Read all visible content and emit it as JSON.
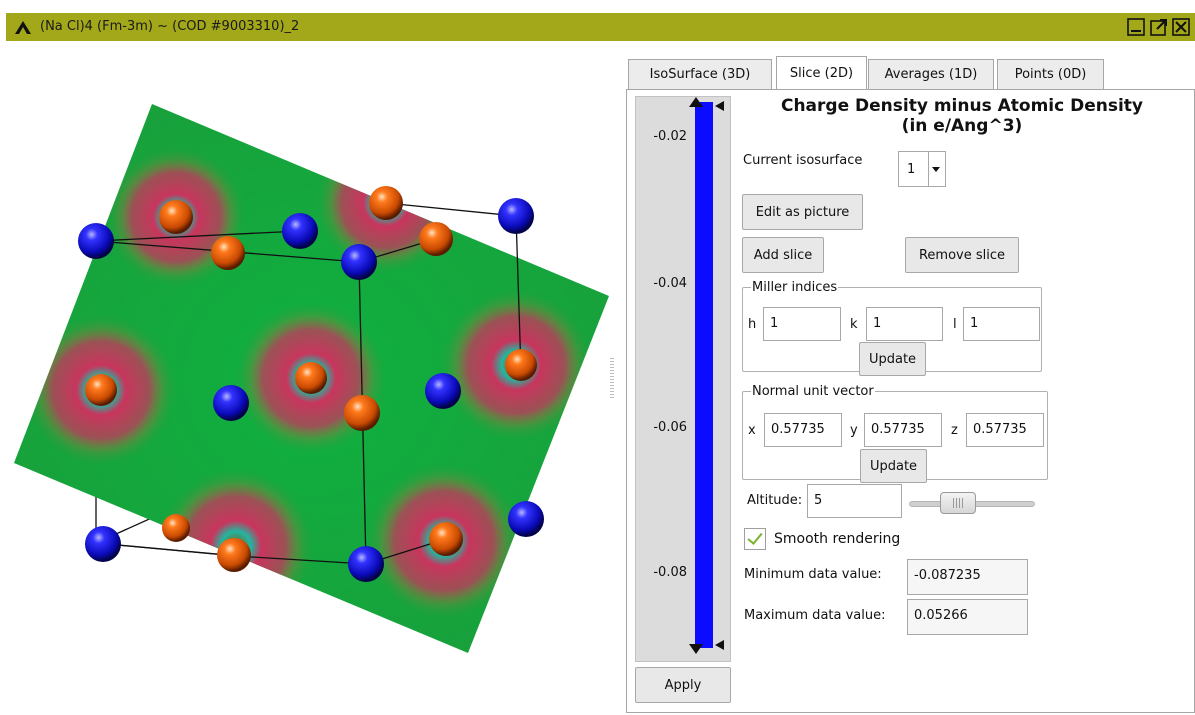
{
  "window": {
    "title": "(Na Cl)4  (Fm-3m) ~ (COD #9003310)_2",
    "title_bar_color": "#a3a81a"
  },
  "tabs": [
    {
      "label": "IsoSurface (3D)",
      "active": false
    },
    {
      "label": "Slice (2D)",
      "active": true
    },
    {
      "label": "Averages (1D)",
      "active": false
    },
    {
      "label": "Points (0D)",
      "active": false
    }
  ],
  "colorbar": {
    "color": "#0b0bff",
    "tick_labels": [
      "-0.02",
      "-0.04",
      "-0.06",
      "-0.08"
    ]
  },
  "slice_panel": {
    "title_line1": "Charge Density minus Atomic Density",
    "title_line2": "(in e/Ang^3)",
    "current_isosurface_label": "Current isosurface",
    "current_isosurface_value": "1",
    "edit_as_picture": "Edit as picture",
    "add_slice": "Add slice",
    "remove_slice": "Remove slice",
    "miller": {
      "legend": "Miller indices",
      "h_label": "h",
      "h": "1",
      "k_label": "k",
      "k": "1",
      "l_label": "l",
      "l": "1",
      "update": "Update"
    },
    "normal": {
      "legend": "Normal unit vector",
      "x_label": "x",
      "x": "0.57735",
      "y_label": "y",
      "y": "0.57735",
      "z_label": "z",
      "z": "0.57735",
      "update": "Update"
    },
    "altitude_label": "Altitude:",
    "altitude_value": "5",
    "altitude_slider_fraction": 0.34,
    "smooth_rendering_label": "Smooth rendering",
    "smooth_rendering_checked": true,
    "min_label": "Minimum data value:",
    "min_value": "-0.087235",
    "max_label": "Maximum data value:",
    "max_value": "0.05266",
    "apply": "Apply"
  },
  "scene": {
    "slice_color": "#11a63c",
    "ring_color": "#c8355d",
    "sodium_color": "#1010d0",
    "chlorine_color": "#e86a14"
  }
}
